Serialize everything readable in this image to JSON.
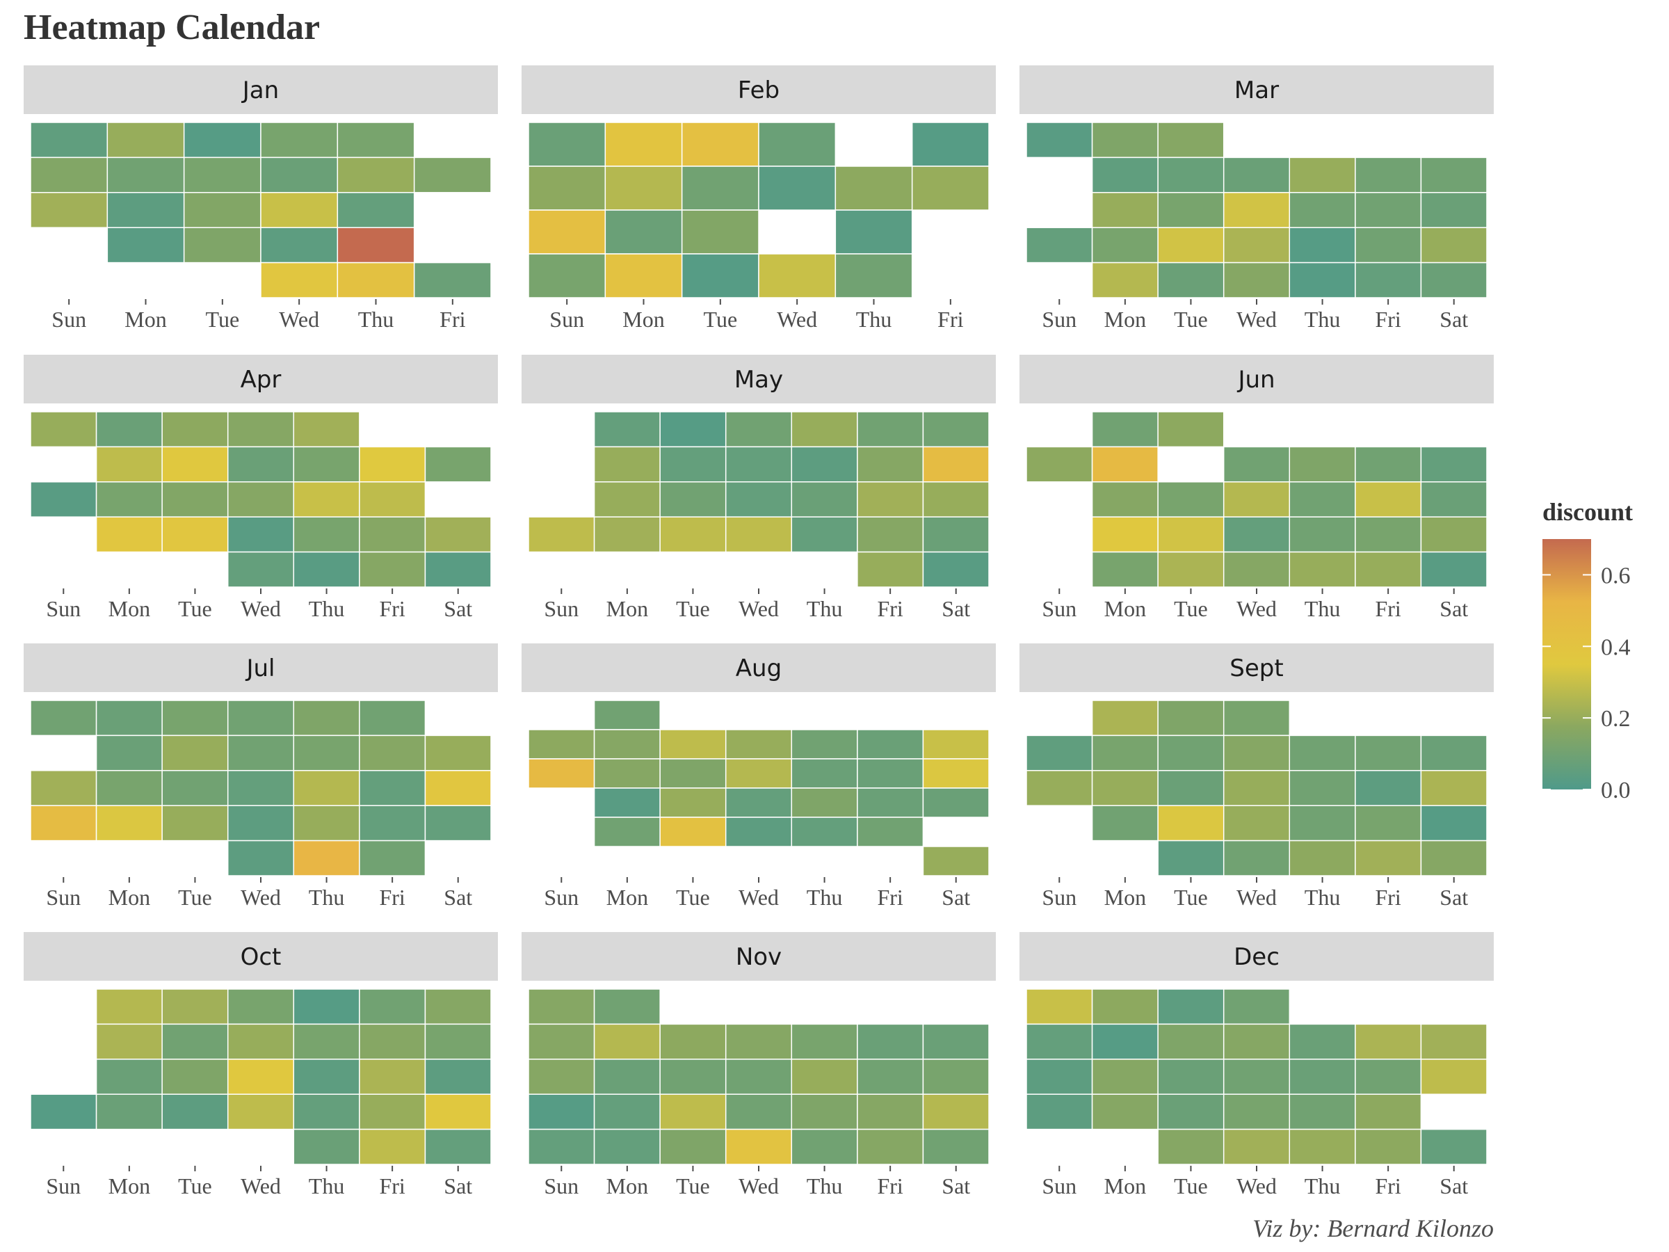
{
  "chart_data": {
    "type": "heatmap",
    "title": "Heatmap Calendar",
    "caption": "Viz by: Bernard Kilonzo",
    "legend": {
      "title": "discount",
      "placement": "right",
      "min": 0.0,
      "max": 0.7,
      "ticks": [
        0.0,
        0.2,
        0.4,
        0.6
      ],
      "tick_labels": [
        "0.0",
        "0.2",
        "0.4",
        "0.6"
      ],
      "gradient_colors": [
        "#4f9a8a",
        "#8ba860",
        "#e0c93f",
        "#e8b545",
        "#c46a4f"
      ]
    },
    "months": [
      {
        "name": "Jan",
        "days": [
          "Sun",
          "Mon",
          "Tue",
          "Wed",
          "Thu",
          "Fri"
        ],
        "weeks": [
          [
            0.05,
            0.2,
            0.02,
            0.12,
            0.12,
            null
          ],
          [
            0.15,
            0.1,
            0.12,
            0.08,
            0.2,
            0.14
          ],
          [
            0.22,
            0.04,
            0.15,
            0.3,
            0.06,
            null
          ],
          [
            null,
            0.03,
            0.14,
            0.04,
            0.7,
            null
          ],
          [
            null,
            null,
            null,
            0.38,
            0.42,
            0.08
          ]
        ]
      },
      {
        "name": "Feb",
        "days": [
          "Sun",
          "Mon",
          "Tue",
          "Wed",
          "Thu",
          "Fri"
        ],
        "weeks": [
          [
            0.08,
            0.39,
            0.43,
            0.08,
            null,
            0.02
          ],
          [
            0.18,
            0.26,
            0.1,
            0.03,
            0.18,
            0.2
          ],
          [
            0.44,
            0.08,
            0.15,
            null,
            0.03,
            null
          ],
          [
            0.12,
            0.41,
            0.02,
            0.3,
            0.1,
            null
          ]
        ]
      },
      {
        "name": "Mar",
        "days": [
          "Sun",
          "Mon",
          "Tue",
          "Wed",
          "Thu",
          "Fri",
          "Sat"
        ],
        "weeks": [
          [
            0.03,
            0.14,
            0.16,
            null,
            null,
            null,
            null
          ],
          [
            null,
            0.05,
            0.07,
            0.08,
            0.2,
            0.1,
            0.1
          ],
          [
            null,
            0.2,
            0.12,
            0.32,
            0.1,
            0.1,
            0.08
          ],
          [
            0.06,
            0.12,
            0.32,
            0.24,
            0.02,
            0.1,
            0.2
          ],
          [
            null,
            0.26,
            0.08,
            0.16,
            0.02,
            0.06,
            0.08
          ]
        ]
      },
      {
        "name": "Apr",
        "days": [
          "Sun",
          "Mon",
          "Tue",
          "Wed",
          "Thu",
          "Fri",
          "Sat"
        ],
        "weeks": [
          [
            0.2,
            0.08,
            0.18,
            0.16,
            0.22,
            null,
            null
          ],
          [
            null,
            0.28,
            0.36,
            0.08,
            0.12,
            0.35,
            0.12
          ],
          [
            0.03,
            0.12,
            0.15,
            0.16,
            0.3,
            0.28,
            null
          ],
          [
            null,
            0.38,
            0.38,
            0.03,
            0.12,
            0.16,
            0.22
          ],
          [
            null,
            null,
            null,
            0.06,
            0.03,
            0.16,
            0.03
          ]
        ]
      },
      {
        "name": "May",
        "days": [
          "Sun",
          "Mon",
          "Tue",
          "Wed",
          "Thu",
          "Fri",
          "Sat"
        ],
        "weeks": [
          [
            null,
            0.06,
            0.02,
            0.1,
            0.2,
            0.1,
            0.1
          ],
          [
            null,
            0.2,
            0.06,
            0.06,
            0.04,
            0.16,
            0.46
          ],
          [
            null,
            0.2,
            0.1,
            0.06,
            0.08,
            0.22,
            0.2
          ],
          [
            0.28,
            0.22,
            0.28,
            0.28,
            0.06,
            0.16,
            0.08
          ],
          [
            null,
            null,
            null,
            null,
            null,
            0.2,
            0.03
          ]
        ]
      },
      {
        "name": "Jun",
        "days": [
          "Sun",
          "Mon",
          "Tue",
          "Wed",
          "Thu",
          "Fri",
          "Sat"
        ],
        "weeks": [
          [
            null,
            0.1,
            0.18,
            null,
            null,
            null,
            null
          ],
          [
            0.18,
            0.48,
            null,
            0.1,
            0.14,
            0.1,
            0.06
          ],
          [
            null,
            0.16,
            0.12,
            0.26,
            0.1,
            0.3,
            0.08
          ],
          [
            null,
            0.36,
            0.32,
            0.06,
            0.1,
            0.12,
            0.18
          ],
          [
            null,
            0.12,
            0.24,
            0.16,
            0.2,
            0.2,
            0.03
          ]
        ]
      },
      {
        "name": "Jul",
        "days": [
          "Sun",
          "Mon",
          "Tue",
          "Wed",
          "Thu",
          "Fri",
          "Sat"
        ],
        "weeks": [
          [
            0.1,
            0.08,
            0.12,
            0.1,
            0.14,
            0.1,
            null
          ],
          [
            null,
            0.08,
            0.2,
            0.1,
            0.12,
            0.16,
            0.2
          ],
          [
            0.22,
            0.12,
            0.1,
            0.06,
            0.26,
            0.06,
            0.38
          ],
          [
            0.46,
            0.34,
            0.2,
            0.04,
            0.2,
            0.06,
            0.06
          ],
          [
            null,
            null,
            null,
            0.04,
            0.52,
            0.1,
            null
          ]
        ]
      },
      {
        "name": "Aug",
        "days": [
          "Sun",
          "Mon",
          "Tue",
          "Wed",
          "Thu",
          "Fri",
          "Sat"
        ],
        "weeks": [
          [
            null,
            0.1,
            null,
            null,
            null,
            null,
            null
          ],
          [
            0.18,
            0.16,
            0.28,
            0.2,
            0.1,
            0.08,
            0.3
          ],
          [
            0.48,
            0.16,
            0.14,
            0.26,
            0.08,
            0.08,
            0.34
          ],
          [
            null,
            0.03,
            0.2,
            0.06,
            0.14,
            0.08,
            0.08
          ],
          [
            null,
            0.1,
            0.42,
            0.04,
            0.06,
            0.1,
            null
          ],
          [
            null,
            null,
            null,
            null,
            null,
            null,
            0.2
          ]
        ]
      },
      {
        "name": "Sept",
        "days": [
          "Sun",
          "Mon",
          "Tue",
          "Wed",
          "Thu",
          "Fri",
          "Sat"
        ],
        "weeks": [
          [
            null,
            0.24,
            0.14,
            0.12,
            null,
            null,
            null
          ],
          [
            0.05,
            0.12,
            0.1,
            0.16,
            0.1,
            0.1,
            0.08
          ],
          [
            0.2,
            0.2,
            0.08,
            0.2,
            0.1,
            0.04,
            0.24
          ],
          [
            null,
            0.1,
            0.34,
            0.2,
            0.1,
            0.12,
            0.02
          ],
          [
            null,
            null,
            0.04,
            0.1,
            0.18,
            0.22,
            0.16
          ]
        ]
      },
      {
        "name": "Oct",
        "days": [
          "Sun",
          "Mon",
          "Tue",
          "Wed",
          "Thu",
          "Fri",
          "Sat"
        ],
        "weeks": [
          [
            null,
            0.26,
            0.22,
            0.12,
            0.02,
            0.1,
            0.16
          ],
          [
            null,
            0.24,
            0.1,
            0.2,
            0.12,
            0.16,
            0.12
          ],
          [
            null,
            0.08,
            0.14,
            0.36,
            0.04,
            0.24,
            0.04
          ],
          [
            0.02,
            0.08,
            0.04,
            0.28,
            0.06,
            0.2,
            0.36
          ],
          [
            null,
            null,
            null,
            null,
            0.08,
            0.28,
            0.06
          ]
        ]
      },
      {
        "name": "Nov",
        "days": [
          "Sun",
          "Mon",
          "Tue",
          "Wed",
          "Thu",
          "Fri",
          "Sat"
        ],
        "weeks": [
          [
            0.16,
            0.1,
            null,
            null,
            null,
            null,
            null
          ],
          [
            0.16,
            0.26,
            0.18,
            0.16,
            0.12,
            0.08,
            0.08
          ],
          [
            0.16,
            0.08,
            0.1,
            0.1,
            0.2,
            0.1,
            0.12
          ],
          [
            0.02,
            0.06,
            0.28,
            0.1,
            0.14,
            0.16,
            0.26
          ],
          [
            0.06,
            0.06,
            0.14,
            0.4,
            0.1,
            0.16,
            0.1
          ]
        ]
      },
      {
        "name": "Dec",
        "days": [
          "Sun",
          "Mon",
          "Tue",
          "Wed",
          "Thu",
          "Fri",
          "Sat"
        ],
        "weeks": [
          [
            0.3,
            0.18,
            0.04,
            0.1,
            null,
            null,
            null
          ],
          [
            0.06,
            0.02,
            0.14,
            0.16,
            0.08,
            0.24,
            0.22
          ],
          [
            0.04,
            0.16,
            0.08,
            0.1,
            0.08,
            0.1,
            0.28
          ],
          [
            0.04,
            0.16,
            0.08,
            0.12,
            0.1,
            0.18,
            null
          ],
          [
            null,
            null,
            0.16,
            0.22,
            0.2,
            0.18,
            0.06
          ]
        ]
      }
    ]
  }
}
